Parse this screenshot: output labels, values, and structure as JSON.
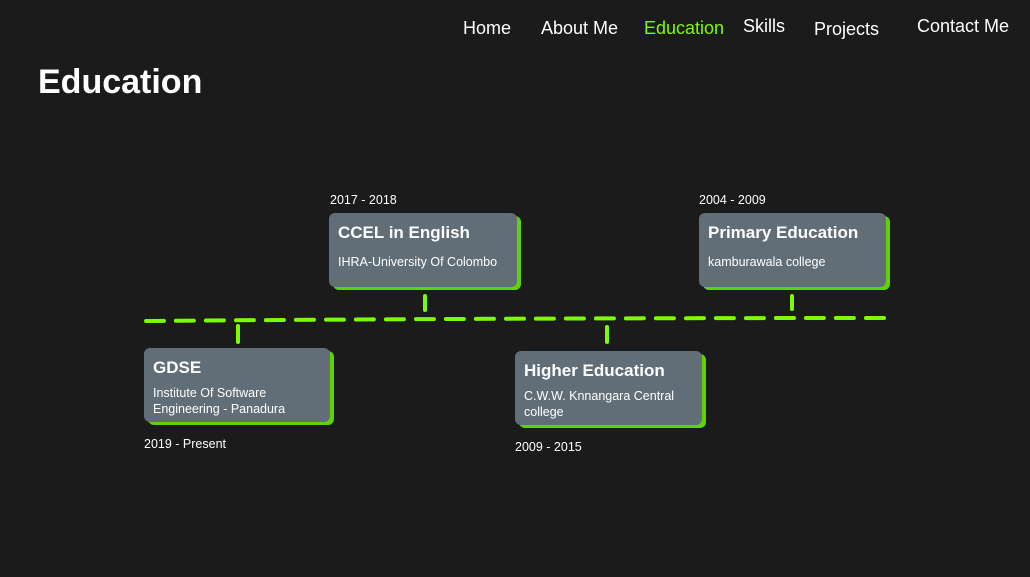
{
  "nav": {
    "home": "Home",
    "about": "About Me",
    "education": "Education",
    "skills": "Skills",
    "projects": "Projects",
    "contact": "Contact Me"
  },
  "page_title": "Education",
  "accent_color": "#7cfc00",
  "card_color": "#616e77",
  "timeline": [
    {
      "title": "GDSE",
      "institution": "Institute Of Software Engineering - Panadura",
      "years": "2019 - Present"
    },
    {
      "title": "CCEL in English",
      "institution": "IHRA-University Of Colombo",
      "years": "2017 - 2018"
    },
    {
      "title": "Higher Education",
      "institution": "C.W.W. Knnangara Central college",
      "years": "2009 - 2015"
    },
    {
      "title": "Primary Education",
      "institution": "kamburawala college",
      "years": "2004 - 2009"
    }
  ]
}
